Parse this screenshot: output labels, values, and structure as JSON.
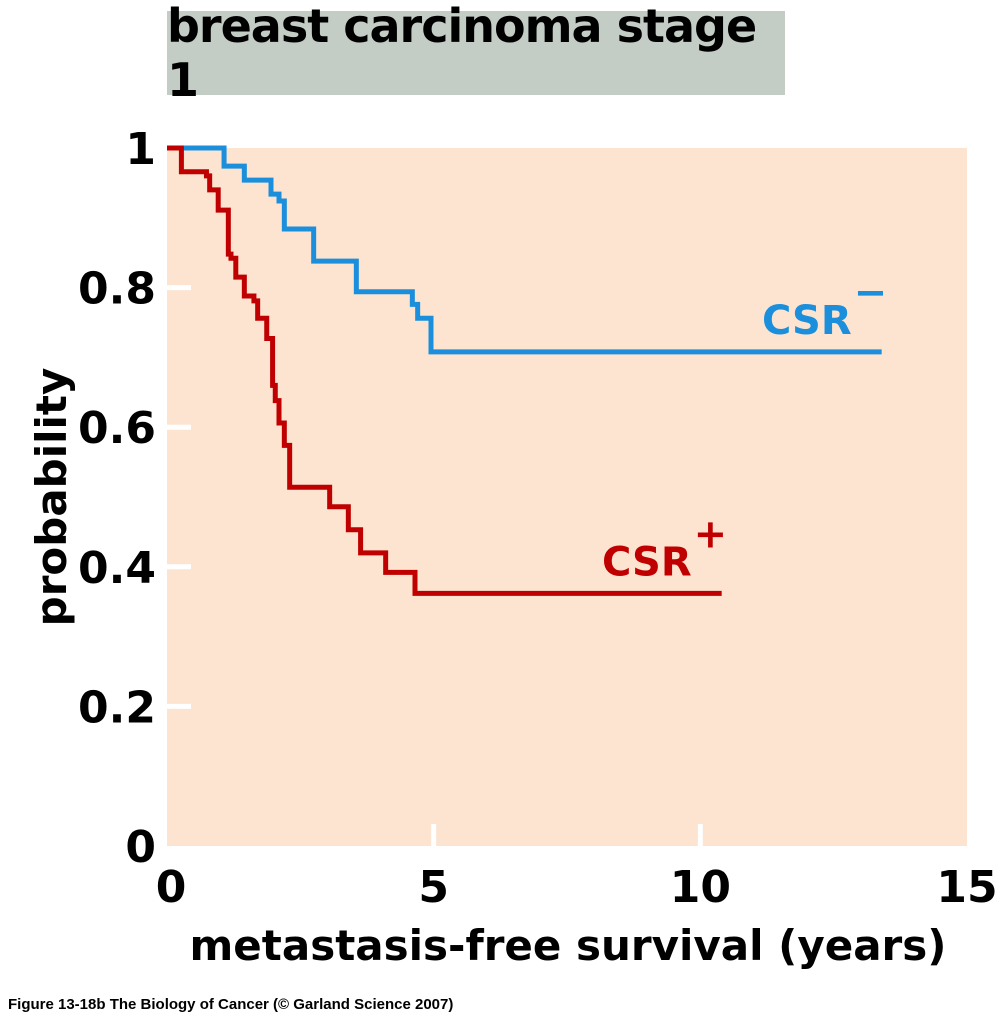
{
  "chart_data": {
    "type": "line",
    "subtype": "kaplan-meier step",
    "title": "breast carcinoma stage 1",
    "xlabel": "metastasis-free survival (years)",
    "ylabel": "probability",
    "xlim": [
      0,
      15
    ],
    "ylim": [
      0,
      1
    ],
    "xticks": [
      0,
      5,
      10,
      15
    ],
    "xtick_labels": [
      "0",
      "5",
      "10",
      "15"
    ],
    "yticks": [
      0,
      0.2,
      0.4,
      0.6,
      0.8,
      1
    ],
    "ytick_labels": [
      "0",
      "0.2",
      "0.4",
      "0.6",
      "0.8",
      "1"
    ],
    "grid": false,
    "background_color": "#fce4d0",
    "series": [
      {
        "name": "CSR−",
        "label_text": "CSR",
        "label_superscript": "−",
        "color": "#1b8fdc",
        "label_position": "right, above line",
        "steps": [
          [
            0,
            1.0
          ],
          [
            1.07,
            0.974
          ],
          [
            1.45,
            0.954
          ],
          [
            1.95,
            0.934
          ],
          [
            2.1,
            0.924
          ],
          [
            2.2,
            0.884
          ],
          [
            2.75,
            0.838
          ],
          [
            3.55,
            0.794
          ],
          [
            4.6,
            0.776
          ],
          [
            4.7,
            0.756
          ],
          [
            4.95,
            0.708
          ]
        ],
        "end_x": 13.4
      },
      {
        "name": "CSR+",
        "label_text": "CSR",
        "label_superscript": "+",
        "color": "#c00000",
        "label_position": "right end, above line",
        "steps": [
          [
            0,
            1.0
          ],
          [
            0.27,
            0.966
          ],
          [
            0.74,
            0.96
          ],
          [
            0.8,
            0.94
          ],
          [
            0.96,
            0.911
          ],
          [
            1.15,
            0.848
          ],
          [
            1.2,
            0.842
          ],
          [
            1.29,
            0.815
          ],
          [
            1.45,
            0.788
          ],
          [
            1.63,
            0.781
          ],
          [
            1.7,
            0.756
          ],
          [
            1.87,
            0.727
          ],
          [
            1.98,
            0.66
          ],
          [
            2.03,
            0.638
          ],
          [
            2.1,
            0.606
          ],
          [
            2.2,
            0.574
          ],
          [
            2.3,
            0.514
          ],
          [
            3.05,
            0.486
          ],
          [
            3.4,
            0.453
          ],
          [
            3.63,
            0.42
          ],
          [
            4.1,
            0.392
          ],
          [
            4.65,
            0.362
          ]
        ],
        "end_x": 10.4
      }
    ]
  },
  "caption": "Figure 13-18b  The Biology of Cancer (© Garland Science 2007)"
}
